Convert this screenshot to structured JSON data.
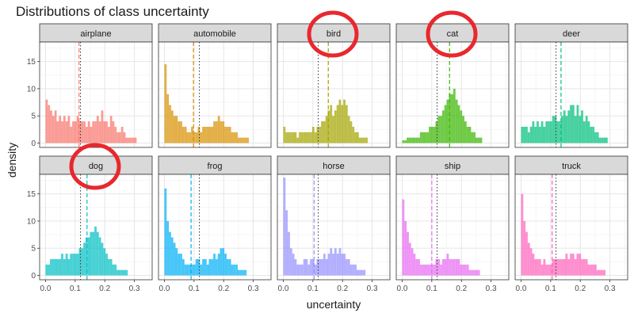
{
  "title": "Distributions of class uncertainty",
  "chart_data": {
    "type": "histogram",
    "layout": "facet grid 2 rows x 5 columns",
    "title": "Distributions of class uncertainty",
    "xlabel": "uncertainty",
    "ylabel": "density",
    "xlim": [
      -0.02,
      0.36
    ],
    "ylim": [
      -0.8,
      18.6
    ],
    "x_ticks": [
      0.0,
      0.1,
      0.2,
      0.3
    ],
    "x_tick_labels": [
      "0.0",
      "0.1",
      "0.2",
      "0.3"
    ],
    "y_ticks": [
      0,
      5,
      10,
      15
    ],
    "y_tick_labels": [
      "0",
      "5",
      "10",
      "15"
    ],
    "grid": true,
    "bin_width": 0.0075,
    "dotted_line_meaning": "overall mean (same in every panel, dark grey dotted)",
    "dashed_line_meaning": "class mean (colored dashed)",
    "overall_mean": 0.118,
    "annotation": "red circles around strip labels: bird, cat, dog",
    "highlighted_panels": [
      "bird",
      "cat",
      "dog"
    ],
    "panels": [
      {
        "label": "airplane",
        "color": "#F8766D",
        "class_mean": 0.113,
        "density": [
          8,
          7,
          6,
          5,
          6,
          4,
          5,
          4,
          5,
          4,
          5,
          3,
          4,
          4,
          5,
          4,
          4,
          4,
          3,
          4,
          3,
          4,
          4,
          5,
          4,
          6,
          4,
          4,
          3,
          5,
          4,
          3,
          2,
          2,
          3,
          2,
          1,
          1,
          1,
          1,
          1,
          0
        ]
      },
      {
        "label": "automobile",
        "color": "#D89000",
        "class_mean": 0.098,
        "density": [
          14.5,
          9,
          7,
          6,
          5,
          5,
          4,
          4,
          3,
          3,
          2,
          2,
          3,
          2,
          2,
          3,
          2,
          3,
          3,
          3,
          3,
          3,
          4,
          4,
          5,
          4,
          4,
          3,
          3,
          3,
          2,
          2,
          2,
          1,
          1,
          1,
          1,
          1,
          0,
          0,
          0,
          0
        ]
      },
      {
        "label": "bird",
        "color": "#A3A500",
        "class_mean": 0.152,
        "density": [
          3,
          2,
          2,
          2,
          2,
          2,
          1,
          2,
          2,
          2,
          2,
          2,
          2,
          3,
          2,
          3,
          3,
          4,
          4,
          5,
          6,
          7,
          5,
          6,
          7,
          8,
          7,
          8,
          7,
          5,
          4,
          3,
          2,
          2,
          1,
          1,
          1,
          1,
          0,
          0,
          0,
          0
        ]
      },
      {
        "label": "cat",
        "color": "#39B600",
        "class_mean": 0.16,
        "density": [
          0.5,
          0.5,
          1,
          1,
          1,
          1,
          1,
          1,
          2,
          2,
          2,
          2,
          3,
          3,
          3,
          4,
          5,
          5,
          6,
          7,
          8,
          9,
          9,
          10,
          8,
          7,
          6,
          5,
          4,
          3,
          3,
          2,
          2,
          1,
          1,
          1,
          0,
          0,
          0,
          0,
          0,
          0
        ]
      },
      {
        "label": "deer",
        "color": "#00BF7D",
        "class_mean": 0.135,
        "density": [
          3,
          3,
          3,
          2,
          3,
          4,
          3,
          4,
          3,
          4,
          3,
          4,
          4,
          4,
          5,
          5,
          4,
          4,
          5,
          6,
          5,
          6,
          7,
          7,
          5,
          7,
          5,
          6,
          4,
          5,
          4,
          3,
          3,
          2,
          2,
          1,
          1,
          1,
          1,
          0,
          0,
          0
        ]
      },
      {
        "label": "dog",
        "color": "#00BFC4",
        "class_mean": 0.14,
        "density": [
          2,
          2,
          3,
          3,
          3,
          3,
          3,
          4,
          3,
          4,
          3,
          4,
          4,
          4,
          4,
          5,
          5,
          6,
          7,
          7,
          8,
          8,
          9,
          8,
          7,
          6,
          5,
          4,
          3,
          3,
          2,
          2,
          1,
          1,
          1,
          1,
          1,
          0,
          0,
          0,
          0,
          0
        ]
      },
      {
        "label": "frog",
        "color": "#00B0F6",
        "class_mean": 0.09,
        "density": [
          16,
          10,
          8,
          7,
          6,
          5,
          4,
          4,
          3,
          2,
          2,
          2,
          2,
          2,
          3,
          3,
          2,
          3,
          3,
          2,
          3,
          3,
          4,
          3,
          4,
          5,
          5,
          4,
          3,
          3,
          2,
          2,
          2,
          1,
          1,
          1,
          1,
          0,
          0,
          0,
          0,
          0
        ]
      },
      {
        "label": "horse",
        "color": "#9590FF",
        "class_mean": 0.104,
        "density": [
          18,
          12,
          8,
          5,
          4,
          3,
          2,
          2,
          2,
          3,
          3,
          2,
          3,
          3,
          2,
          3,
          3,
          3,
          4,
          3,
          4,
          5,
          4,
          5,
          4,
          5,
          4,
          4,
          3,
          3,
          2,
          2,
          2,
          1,
          1,
          1,
          1,
          0,
          0,
          0,
          0,
          0
        ]
      },
      {
        "label": "ship",
        "color": "#E76BF3",
        "class_mean": 0.1,
        "density": [
          14,
          10,
          8,
          6,
          5,
          4,
          3,
          3,
          2,
          2,
          2,
          2,
          2,
          2,
          2,
          3,
          3,
          2,
          3,
          3,
          4,
          3,
          3,
          3,
          3,
          3,
          2,
          2,
          2,
          2,
          1,
          1,
          1,
          1,
          1,
          0,
          0,
          0,
          0,
          0,
          0,
          0
        ]
      },
      {
        "label": "truck",
        "color": "#FF62BC",
        "class_mean": 0.105,
        "density": [
          15,
          10,
          8,
          6,
          5,
          4,
          3,
          3,
          3,
          2,
          3,
          2,
          2,
          2,
          3,
          3,
          3,
          3,
          3,
          3,
          4,
          3,
          4,
          4,
          3,
          4,
          4,
          3,
          3,
          3,
          2,
          2,
          2,
          2,
          1,
          1,
          1,
          1,
          0,
          0,
          0,
          0
        ]
      }
    ]
  }
}
